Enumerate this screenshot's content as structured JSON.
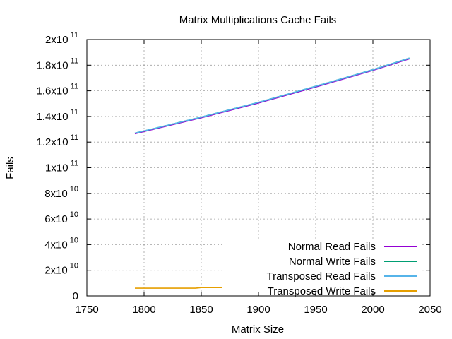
{
  "chart_data": {
    "type": "line",
    "title": "Matrix Multiplications Cache Fails",
    "xlabel": "Matrix Size",
    "ylabel": "Fails",
    "xlim": [
      1750,
      2050
    ],
    "ylim": [
      0,
      200000000000
    ],
    "grid": true,
    "legend_position": "bottom-right",
    "x_ticks": [
      1750,
      1800,
      1850,
      1900,
      1950,
      2000,
      2050
    ],
    "x_tick_labels": [
      "1750",
      "1800",
      "1850",
      "1900",
      "1950",
      "2000",
      "2050"
    ],
    "y_ticks": [
      0,
      20000000000,
      40000000000,
      60000000000,
      80000000000,
      100000000000,
      120000000000,
      140000000000,
      160000000000,
      180000000000,
      200000000000
    ],
    "y_tick_labels": [
      {
        "mant": "0",
        "exp": ""
      },
      {
        "mant": "2x10",
        "exp": "10"
      },
      {
        "mant": "4x10",
        "exp": "10"
      },
      {
        "mant": "6x10",
        "exp": "10"
      },
      {
        "mant": "8x10",
        "exp": "10"
      },
      {
        "mant": "1x10",
        "exp": "11"
      },
      {
        "mant": "1.2x10",
        "exp": "11"
      },
      {
        "mant": "1.4x10",
        "exp": "11"
      },
      {
        "mant": "1.6x10",
        "exp": "11"
      },
      {
        "mant": "1.8x10",
        "exp": "11"
      },
      {
        "mant": "2x10",
        "exp": "11"
      }
    ],
    "series": [
      {
        "name": "Normal Read Fails",
        "color": "#9400d3",
        "x": [
          1792,
          1850,
          1900,
          1950,
          2000,
          2032
        ],
        "y": [
          126500000000,
          139000000000,
          150500000000,
          163000000000,
          176000000000,
          185000000000
        ]
      },
      {
        "name": "Normal Write Fails",
        "color": "#009e73",
        "x": [
          1792,
          1850,
          1900,
          1950,
          2000,
          2032
        ],
        "y": [
          127000000000,
          139500000000,
          151000000000,
          163500000000,
          176500000000,
          185500000000
        ]
      },
      {
        "name": "Transposed Read Fails",
        "color": "#56b4e9",
        "x": [
          1792,
          1850,
          1900,
          1950,
          2000,
          2032
        ],
        "y": [
          127000000000,
          139500000000,
          151000000000,
          163500000000,
          176500000000,
          185500000000
        ]
      },
      {
        "name": "Transposed Write Fails",
        "color": "#e69f00",
        "x": [
          1792,
          1845,
          1850,
          1895,
          1900,
          1950,
          2000,
          2032
        ],
        "y": [
          6000000000,
          6000000000,
          6500000000,
          6500000000,
          7000000000,
          7300000000,
          7600000000,
          7800000000
        ]
      }
    ]
  }
}
